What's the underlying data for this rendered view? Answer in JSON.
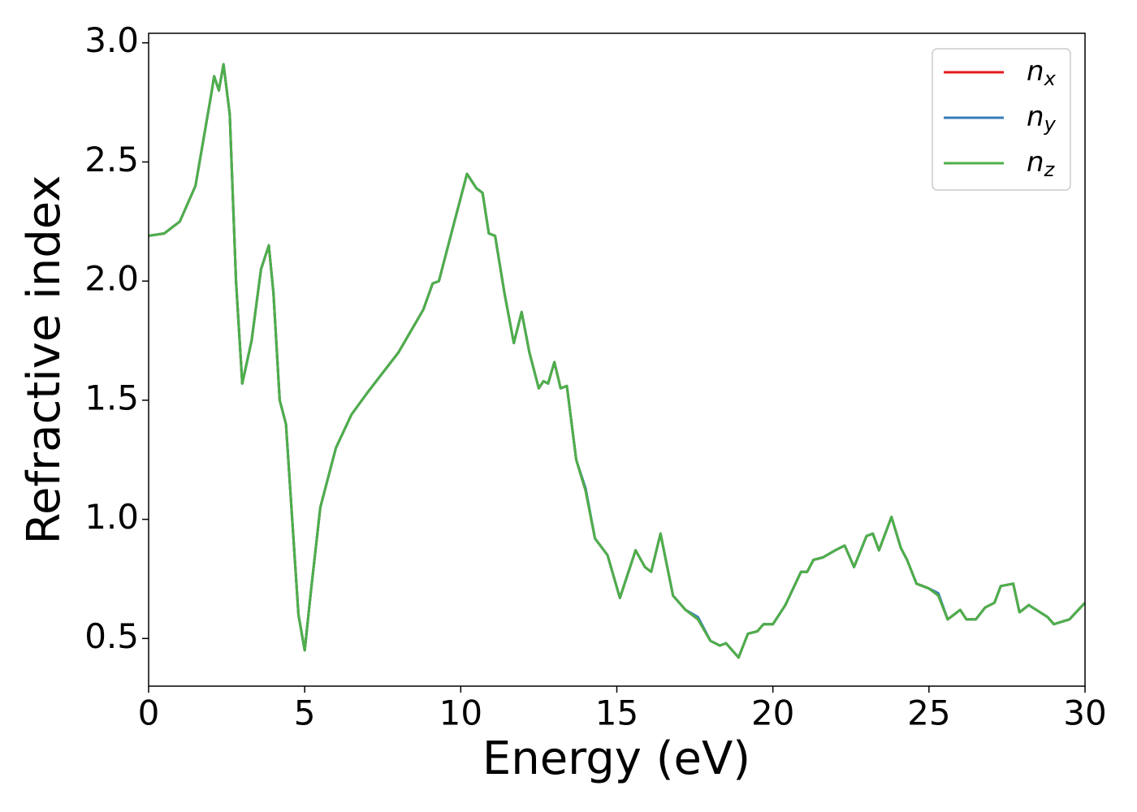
{
  "chart_data": {
    "type": "line",
    "xlabel": "Energy (eV)",
    "ylabel": "Refractive index",
    "x": [
      0,
      0.5,
      1.0,
      1.5,
      2.0,
      2.1,
      2.25,
      2.4,
      2.6,
      2.8,
      3.0,
      3.3,
      3.6,
      3.85,
      4.0,
      4.2,
      4.4,
      4.6,
      4.8,
      5.0,
      5.2,
      5.5,
      6.0,
      6.5,
      7.0,
      8.0,
      8.8,
      9.1,
      9.3,
      9.8,
      10.2,
      10.5,
      10.7,
      10.9,
      11.1,
      11.4,
      11.7,
      11.95,
      12.2,
      12.5,
      12.65,
      12.8,
      13.0,
      13.2,
      13.4,
      13.7,
      14.0,
      14.3,
      14.7,
      15.1,
      15.6,
      15.9,
      16.1,
      16.4,
      16.8,
      17.2,
      17.6,
      18.0,
      18.3,
      18.5,
      18.9,
      19.2,
      19.5,
      19.7,
      20.0,
      20.4,
      20.9,
      21.1,
      21.3,
      21.6,
      22.0,
      22.3,
      22.6,
      23.0,
      23.2,
      23.4,
      23.8,
      24.1,
      24.3,
      24.6,
      25.0,
      25.3,
      25.6,
      25.8,
      26.0,
      26.2,
      26.5,
      26.8,
      27.1,
      27.3,
      27.7,
      27.9,
      28.2,
      28.8,
      29.0,
      29.5,
      30.0
    ],
    "series": [
      {
        "name": "n_x",
        "color": "#e41a1c",
        "values": [
          2.19,
          2.2,
          2.25,
          2.4,
          2.78,
          2.86,
          2.8,
          2.91,
          2.7,
          2.0,
          1.57,
          1.75,
          2.05,
          2.15,
          1.95,
          1.5,
          1.4,
          1.0,
          0.6,
          0.45,
          0.7,
          1.05,
          1.3,
          1.44,
          1.53,
          1.7,
          1.88,
          1.99,
          2.0,
          2.25,
          2.45,
          2.39,
          2.37,
          2.2,
          2.19,
          1.95,
          1.74,
          1.87,
          1.7,
          1.55,
          1.58,
          1.57,
          1.66,
          1.55,
          1.56,
          1.25,
          1.12,
          0.92,
          0.85,
          0.67,
          0.87,
          0.8,
          0.78,
          0.94,
          0.68,
          0.62,
          0.58,
          0.49,
          0.47,
          0.48,
          0.42,
          0.52,
          0.53,
          0.56,
          0.56,
          0.64,
          0.78,
          0.78,
          0.83,
          0.84,
          0.87,
          0.89,
          0.8,
          0.93,
          0.94,
          0.87,
          1.01,
          0.88,
          0.83,
          0.73,
          0.71,
          0.68,
          0.58,
          0.6,
          0.62,
          0.58,
          0.58,
          0.63,
          0.65,
          0.72,
          0.73,
          0.61,
          0.64,
          0.59,
          0.56,
          0.58,
          0.65
        ]
      },
      {
        "name": "n_y",
        "color": "#377eb8",
        "values": [
          2.19,
          2.2,
          2.25,
          2.4,
          2.78,
          2.86,
          2.8,
          2.91,
          2.7,
          2.0,
          1.57,
          1.75,
          2.05,
          2.15,
          1.95,
          1.5,
          1.4,
          1.0,
          0.6,
          0.45,
          0.7,
          1.05,
          1.3,
          1.44,
          1.53,
          1.7,
          1.88,
          1.99,
          2.0,
          2.25,
          2.45,
          2.39,
          2.37,
          2.2,
          2.19,
          1.95,
          1.74,
          1.87,
          1.7,
          1.55,
          1.58,
          1.57,
          1.66,
          1.55,
          1.56,
          1.25,
          1.13,
          0.92,
          0.85,
          0.67,
          0.87,
          0.8,
          0.78,
          0.94,
          0.68,
          0.62,
          0.59,
          0.49,
          0.47,
          0.48,
          0.42,
          0.52,
          0.53,
          0.56,
          0.56,
          0.64,
          0.78,
          0.78,
          0.83,
          0.84,
          0.87,
          0.89,
          0.8,
          0.93,
          0.94,
          0.87,
          1.01,
          0.88,
          0.83,
          0.73,
          0.71,
          0.69,
          0.58,
          0.6,
          0.62,
          0.58,
          0.58,
          0.63,
          0.65,
          0.72,
          0.73,
          0.61,
          0.64,
          0.59,
          0.56,
          0.58,
          0.65
        ]
      },
      {
        "name": "n_z",
        "color": "#4daf4a",
        "values": [
          2.19,
          2.2,
          2.25,
          2.4,
          2.78,
          2.86,
          2.8,
          2.91,
          2.7,
          2.0,
          1.57,
          1.75,
          2.05,
          2.15,
          1.95,
          1.5,
          1.4,
          1.0,
          0.6,
          0.45,
          0.7,
          1.05,
          1.3,
          1.44,
          1.53,
          1.7,
          1.88,
          1.99,
          2.0,
          2.25,
          2.45,
          2.39,
          2.37,
          2.2,
          2.19,
          1.95,
          1.74,
          1.87,
          1.7,
          1.55,
          1.58,
          1.57,
          1.66,
          1.55,
          1.56,
          1.25,
          1.12,
          0.92,
          0.85,
          0.67,
          0.87,
          0.8,
          0.78,
          0.94,
          0.68,
          0.62,
          0.58,
          0.49,
          0.47,
          0.48,
          0.42,
          0.52,
          0.53,
          0.56,
          0.56,
          0.64,
          0.78,
          0.78,
          0.83,
          0.84,
          0.87,
          0.89,
          0.8,
          0.93,
          0.94,
          0.87,
          1.01,
          0.88,
          0.83,
          0.73,
          0.71,
          0.68,
          0.58,
          0.6,
          0.62,
          0.58,
          0.58,
          0.63,
          0.65,
          0.72,
          0.73,
          0.61,
          0.64,
          0.59,
          0.56,
          0.58,
          0.65
        ]
      }
    ],
    "xlim": [
      0,
      30
    ],
    "xticks": [
      0,
      5,
      10,
      15,
      20,
      25,
      30
    ],
    "ylim": [
      0.3,
      3.04
    ],
    "yticks": [
      0.5,
      {
        "value": 1,
        "label": "1.0"
      },
      1.5,
      {
        "value": 2,
        "label": "2.0"
      },
      2.5,
      {
        "value": 3,
        "label": "3.0"
      }
    ],
    "legend": "upper right",
    "grid": false
  }
}
